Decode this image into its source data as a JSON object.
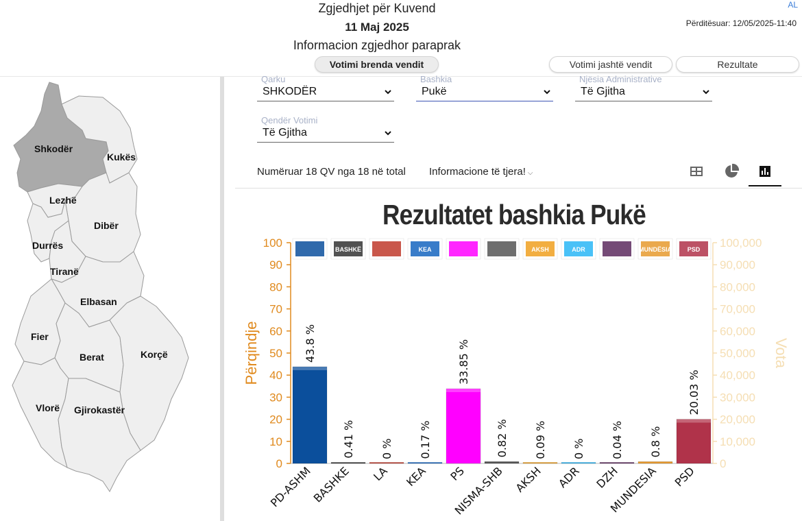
{
  "header": {
    "title": "Zgjedhjet për Kuvend",
    "date": "11 Maj 2025",
    "subtitle": "Informacion zgjedhor paraprak",
    "lang": "AL",
    "updated": "Përditësuar: 12/05/2025-11:40"
  },
  "nav": {
    "inside": "Votimi brenda vendit",
    "outside": "Votimi jashtë vendit",
    "results": "Rezultate"
  },
  "map": {
    "regions": [
      "Shkodër",
      "Kukës",
      "Lezhë",
      "Dibër",
      "Durrës",
      "Tiranë",
      "Elbasan",
      "Fier",
      "Berat",
      "Korçë",
      "Vlorë",
      "Gjirokastër"
    ],
    "selected": "Shkodër"
  },
  "filters": {
    "qarku": {
      "label": "Qarku",
      "value": "SHKODËR"
    },
    "bashkia": {
      "label": "Bashkia",
      "value": "Pukë"
    },
    "njesia": {
      "label": "Njësia Administrative",
      "value": "Të Gjitha"
    },
    "qendra": {
      "label": "Qendër Votimi",
      "value": "Të Gjitha"
    }
  },
  "info": {
    "counted": "Numëruar 18 QV nga 18 në total",
    "more": "Informacione të tjera!"
  },
  "views": {
    "table": "table-icon",
    "pie": "pie-chart-icon",
    "bar": "bar-chart-icon",
    "active": "bar"
  },
  "chart_data": {
    "type": "bar",
    "title": "Rezultatet bashkia Pukë",
    "ylabel": "Përqindje",
    "y2label": "Vota",
    "ylim": [
      0,
      100
    ],
    "y2lim": [
      0,
      100000
    ],
    "yticks": [
      "0",
      "10",
      "20",
      "30",
      "40",
      "50",
      "60",
      "70",
      "80",
      "90",
      "100"
    ],
    "y2ticks": [
      "0",
      "10,000",
      "20,000",
      "30,000",
      "40,000",
      "50,000",
      "60,000",
      "70,000",
      "80,000",
      "90,000",
      "100,000"
    ],
    "categories": [
      "PD-ASHM",
      "BASHKE",
      "LA",
      "KEA",
      "PS",
      "NISMA-SHB",
      "AKSH",
      "ADR",
      "DZH",
      "MUNDESIA",
      "PSD"
    ],
    "values": [
      43.8,
      0.41,
      0,
      0.17,
      33.85,
      0.82,
      0.09,
      0,
      0.04,
      0.8,
      20.03
    ],
    "labels": [
      "43.8 %",
      "0.41 %",
      "0 %",
      "0.17 %",
      "33.85 %",
      "0.82 %",
      "0.09 %",
      "0 %",
      "0.04 %",
      "0.8 %",
      "20.03 %"
    ],
    "colors": [
      "#0b4f9c",
      "#333333",
      "#c0392b",
      "#1565c0",
      "#ff00ff",
      "#555555",
      "#f0a020",
      "#29b6f6",
      "#5c2a5e",
      "#e69a2e",
      "#b0334a"
    ],
    "logo_text": [
      "",
      "BASHKË",
      "",
      "KEA",
      "",
      "",
      "AKSH",
      "ADR",
      "",
      "MUNDËSIA",
      "PSD"
    ],
    "axis_color": "#e08a1e",
    "axis2_color": "#f5deb3"
  }
}
